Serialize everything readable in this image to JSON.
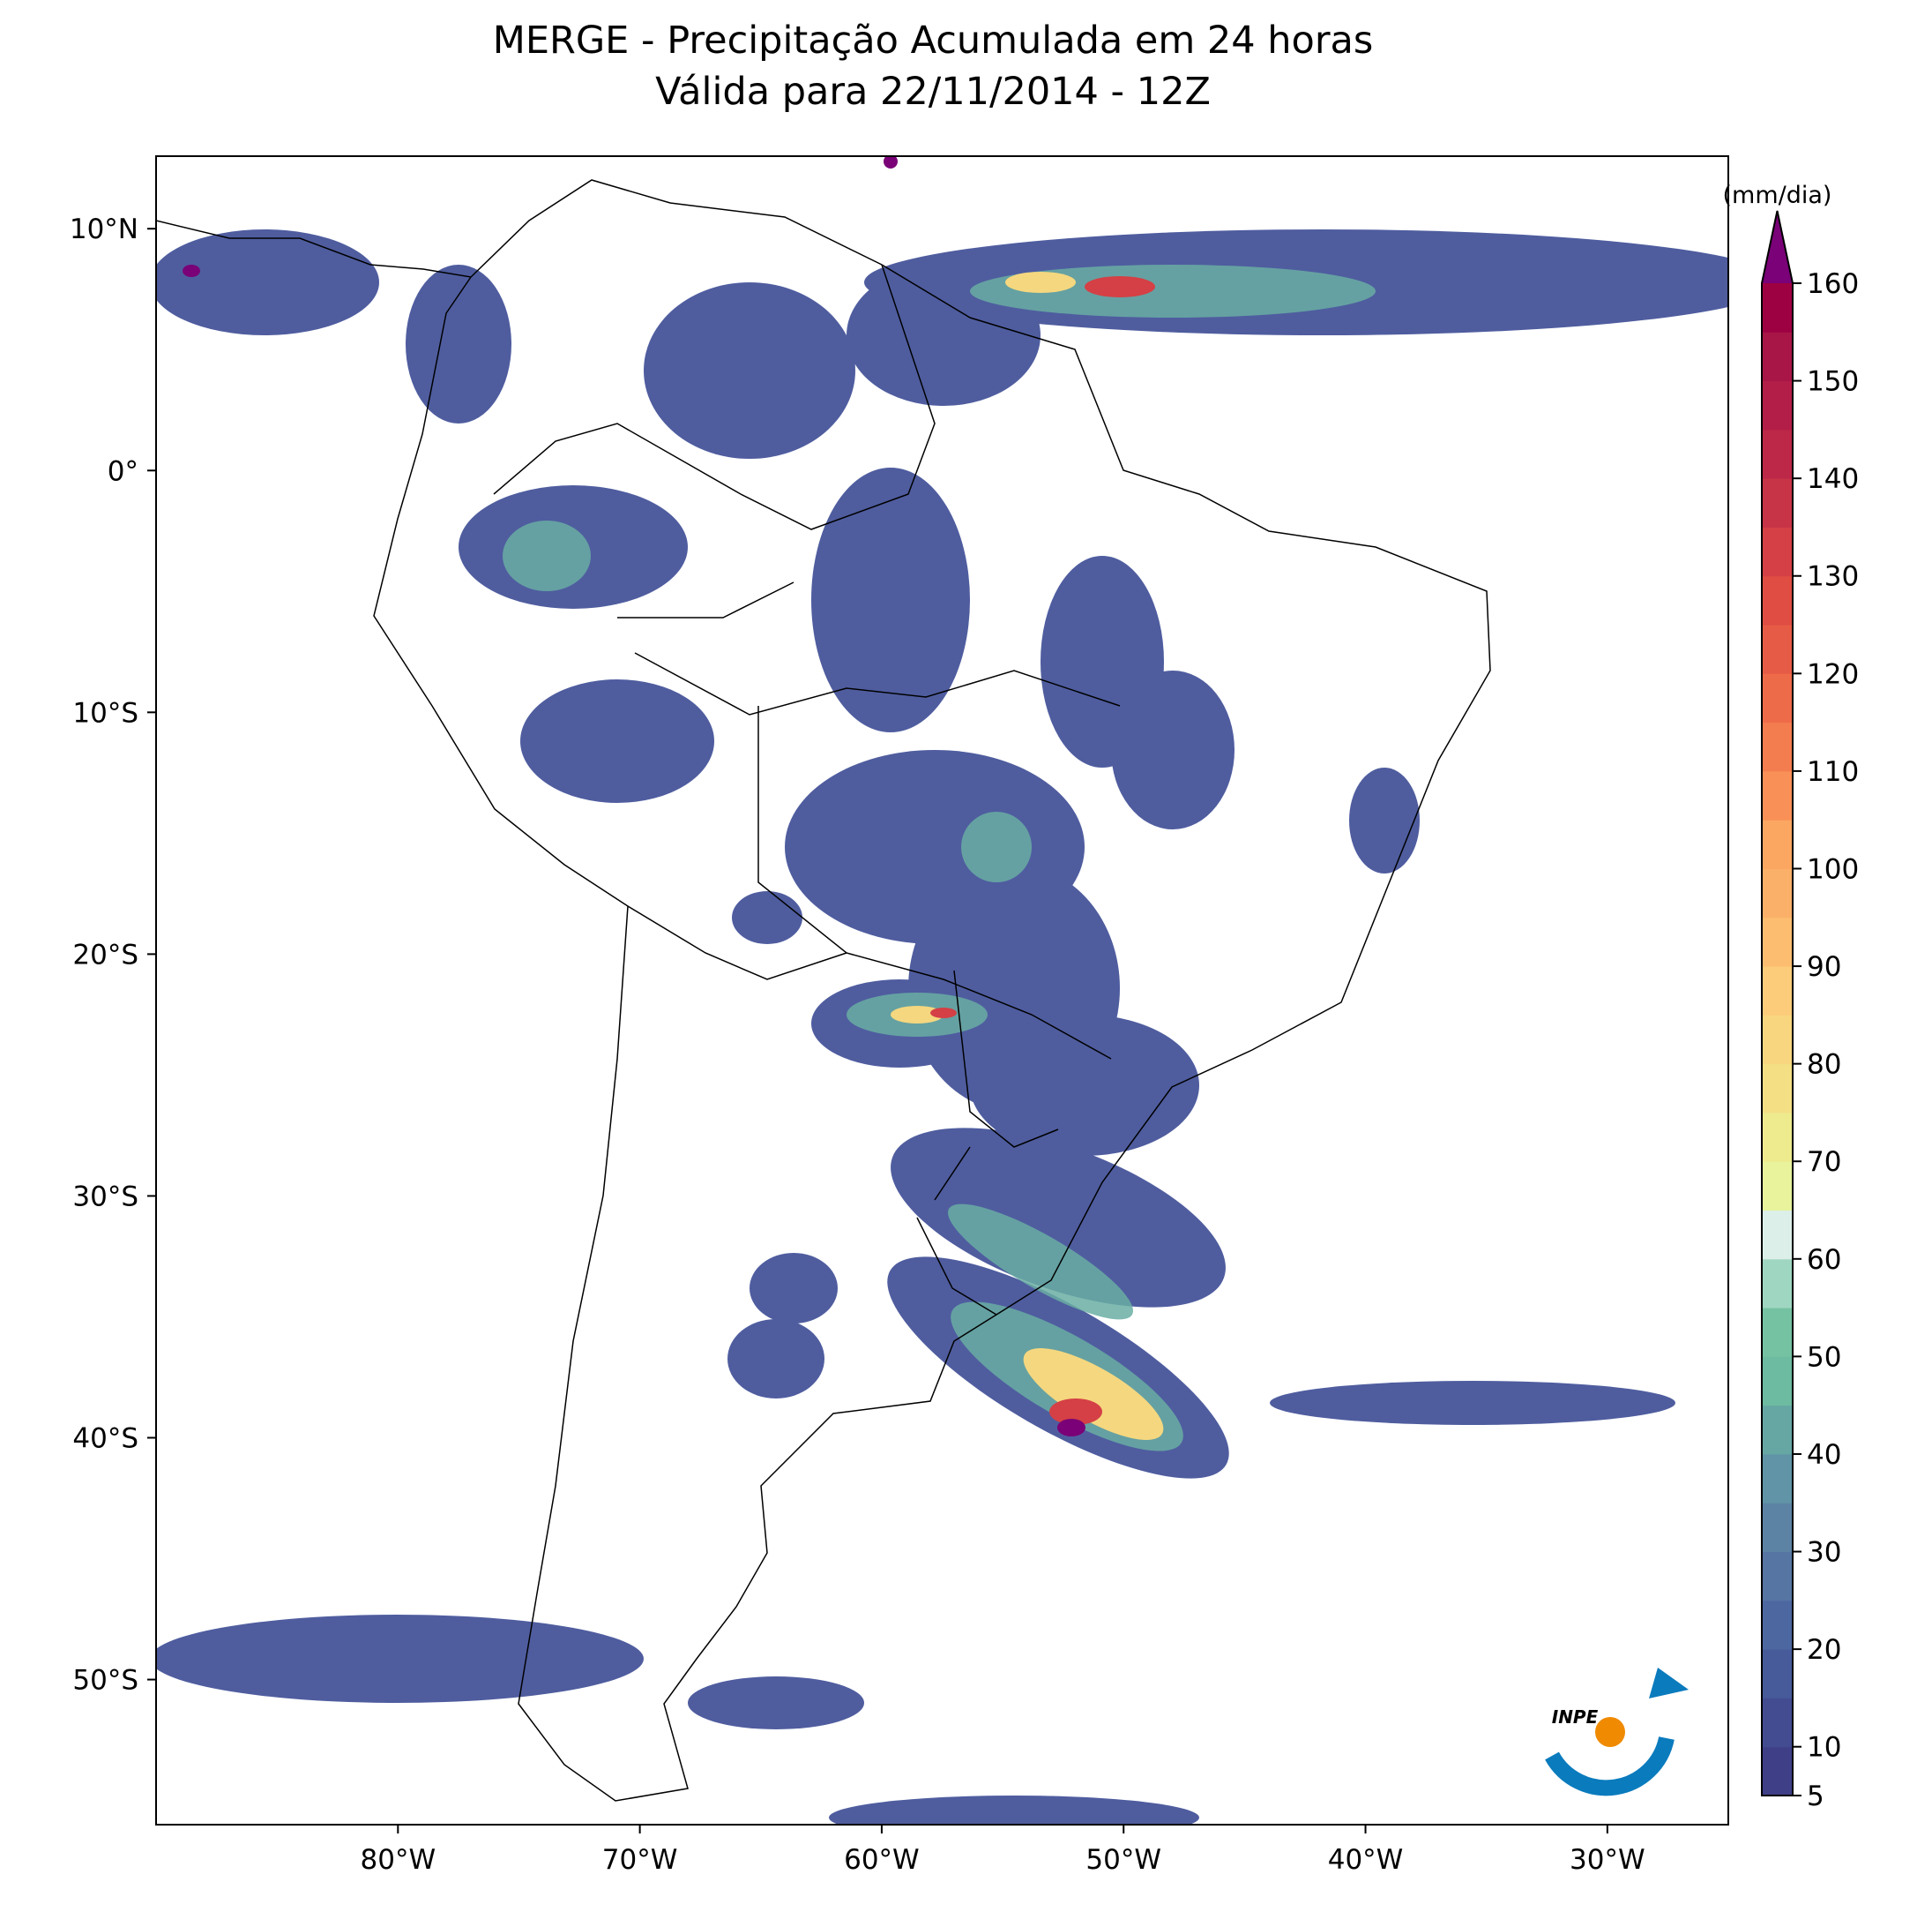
{
  "chart_data": {
    "type": "map",
    "title": [
      "MERGE - Precipitação Acumulada em 24 horas",
      "Válida para 22/11/2014 - 12Z"
    ],
    "xlim": [
      -90,
      -25
    ],
    "ylim": [
      -56,
      13
    ],
    "xticks": [
      {
        "value": -80,
        "label": "80°W"
      },
      {
        "value": -70,
        "label": "70°W"
      },
      {
        "value": -60,
        "label": "60°W"
      },
      {
        "value": -50,
        "label": "50°W"
      },
      {
        "value": -40,
        "label": "40°W"
      },
      {
        "value": -30,
        "label": "30°W"
      }
    ],
    "yticks": [
      {
        "value": 10,
        "label": "10°N"
      },
      {
        "value": 0,
        "label": "0°"
      },
      {
        "value": -10,
        "label": "10°S"
      },
      {
        "value": -20,
        "label": "20°S"
      },
      {
        "value": -30,
        "label": "30°S"
      },
      {
        "value": -40,
        "label": "40°S"
      },
      {
        "value": -50,
        "label": "50°S"
      }
    ],
    "colorbar": {
      "label": "(mm/dia)",
      "lim": [
        5,
        160
      ],
      "ticks": [
        5,
        10,
        20,
        30,
        40,
        50,
        60,
        70,
        80,
        90,
        100,
        110,
        120,
        130,
        140,
        150,
        160
      ],
      "colors": [
        "#3f3f88",
        "#434c91",
        "#475a9a",
        "#4d67a1",
        "#5775a3",
        "#5d83a4",
        "#6094a6",
        "#66a7a4",
        "#6dbba1",
        "#75c2a2",
        "#9fd6c2",
        "#dcefe8",
        "#e8f39c",
        "#eeeb8f",
        "#f4df85",
        "#f8d67f",
        "#fccc7a",
        "#fcbd70",
        "#fbb069",
        "#fba762",
        "#f99057",
        "#f47d4f",
        "#ee6b49",
        "#e65b45",
        "#df4d43",
        "#d44045",
        "#c83447",
        "#bd2848",
        "#b31e48",
        "#a81648",
        "#9e0142"
      ],
      "extend_color": "#7a0177"
    },
    "logo": "INPE"
  }
}
